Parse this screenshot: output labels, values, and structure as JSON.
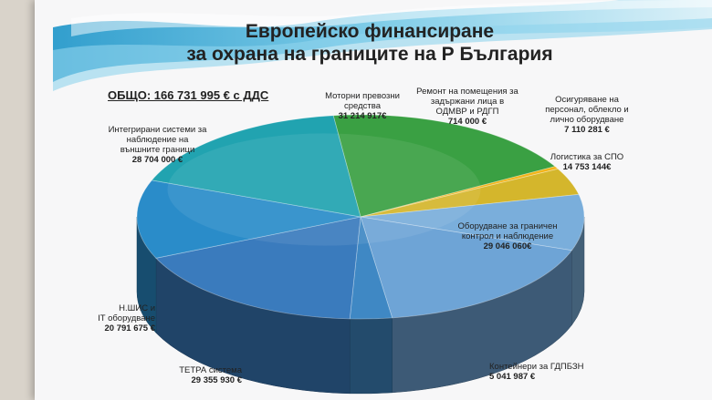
{
  "title_line1": "Европейско финансиране",
  "title_line2": "за охрана на границите на Р България",
  "total_label": "ОБЩО: 166 731 995 € с ДДС",
  "colors": {
    "background": "#f7f7f8",
    "wave_dark": "#1e9fd0",
    "wave_light": "#bfe7f4"
  },
  "chart_data": {
    "type": "pie",
    "slices": [
      {
        "label_lines": [
          "Моторни превозни",
          "средства"
        ],
        "value": 31214917,
        "value_label": "31 214 917€",
        "color": "#3aa043"
      },
      {
        "label_lines": [
          "Ремонт на помещения за",
          "задържани лица в",
          "ОДМВР и РДГП"
        ],
        "value": 714000,
        "value_label": "714 000 €",
        "color": "#f2b418"
      },
      {
        "label_lines": [
          "Осигуряване на",
          "персонал, облекло и",
          "лично оборудване"
        ],
        "value": 7110281,
        "value_label": "7 110 281 €",
        "color": "#d4b62c"
      },
      {
        "label_lines": [
          "Логистика за СПО"
        ],
        "value": 14753144,
        "value_label": "14 753 144€",
        "color": "#7aaedb"
      },
      {
        "label_lines": [
          "Оборудване за граничен",
          "контрол и наблюдение"
        ],
        "value": 29046060,
        "value_label": "29 046 060€",
        "color": "#6ea4d6"
      },
      {
        "label_lines": [
          "Контейнери за ГДПБЗН"
        ],
        "value": 5041987,
        "value_label": "5 041 987 €",
        "color": "#3f88c4"
      },
      {
        "label_lines": [
          "ТЕТРА система"
        ],
        "value": 29355930,
        "value_label": "29 355 930 €",
        "color": "#3a7bbd"
      },
      {
        "label_lines": [
          "Н.ШИС и",
          "IT оборудване"
        ],
        "value": 20791675,
        "value_label": "20 791 675 €",
        "color": "#2a8cc9"
      },
      {
        "label_lines": [
          "Интегрирани системи за",
          "наблюдение на",
          "външните граници"
        ],
        "value": 28704000,
        "value_label": "28 704 000 €",
        "color": "#21a3b0"
      }
    ]
  }
}
